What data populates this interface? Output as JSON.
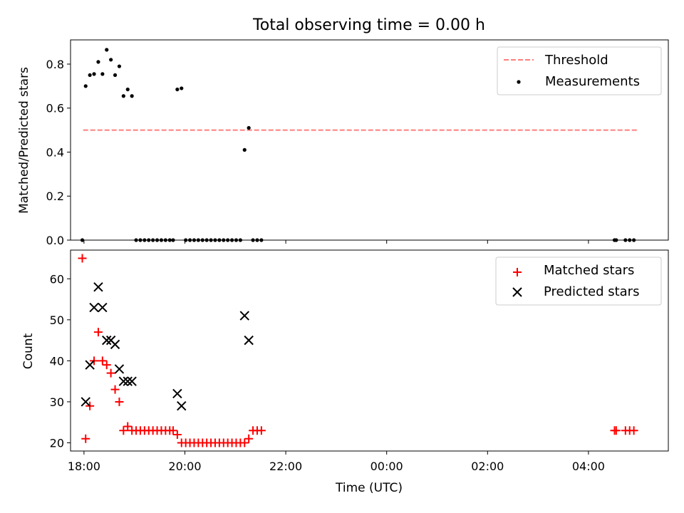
{
  "chart_data": [
    {
      "type": "scatter",
      "title": "Total observing time = 0.00 h",
      "xlabel": "",
      "ylabel": "Matched/Predicted stars",
      "xlim": [
        "17:44",
        "05:35"
      ],
      "ylim": [
        0,
        0.91
      ],
      "yticks": [
        "0.0",
        "0.2",
        "0.4",
        "0.6",
        "0.8"
      ],
      "grid": false,
      "legend_position": "top-right",
      "series": [
        {
          "name": "Threshold",
          "style": "dashed-line",
          "color": "#ff7f7f",
          "x": [
            "17:59",
            "04:58"
          ],
          "y": [
            0.5,
            0.5
          ]
        },
        {
          "name": "Measurements",
          "style": "dot",
          "color": "#000000",
          "x": [
            "17:58",
            "18:02",
            "18:07",
            "18:12",
            "18:17",
            "18:22",
            "18:27",
            "18:32",
            "18:37",
            "18:42",
            "18:47",
            "18:52",
            "18:57",
            "19:02",
            "19:07",
            "19:12",
            "19:17",
            "19:22",
            "19:27",
            "19:32",
            "19:37",
            "19:42",
            "19:46",
            "19:51",
            "19:56",
            "20:01",
            "20:06",
            "20:11",
            "20:16",
            "20:21",
            "20:26",
            "20:31",
            "20:36",
            "20:41",
            "20:46",
            "20:51",
            "20:56",
            "21:01",
            "21:06",
            "21:11",
            "21:16",
            "21:21",
            "21:26",
            "21:31",
            "04:31",
            "04:33",
            "04:44",
            "04:49",
            "04:54"
          ],
          "y": [
            0.0,
            0.7,
            0.75,
            0.755,
            0.81,
            0.755,
            0.865,
            0.82,
            0.75,
            0.79,
            0.655,
            0.685,
            0.655,
            0.0,
            0.0,
            0.0,
            0.0,
            0.0,
            0.0,
            0.0,
            0.0,
            0.0,
            0.0,
            0.685,
            0.69,
            0.0,
            0.0,
            0.0,
            0.0,
            0.0,
            0.0,
            0.0,
            0.0,
            0.0,
            0.0,
            0.0,
            0.0,
            0.0,
            0.0,
            0.41,
            0.51,
            0.0,
            0.0,
            0.0,
            0.0,
            0.0,
            0.0,
            0.0,
            0.0
          ]
        }
      ]
    },
    {
      "type": "scatter",
      "title": "",
      "xlabel": "Time (UTC)",
      "ylabel": "Count",
      "xlim": [
        "17:44",
        "05:35"
      ],
      "ylim": [
        18,
        67
      ],
      "yticks": [
        "20",
        "30",
        "40",
        "50",
        "60"
      ],
      "xticks": [
        "18:00",
        "20:00",
        "22:00",
        "00:00",
        "02:00",
        "04:00"
      ],
      "grid": false,
      "legend_position": "top-right",
      "series": [
        {
          "name": "Matched stars",
          "style": "plus",
          "color": "#ff0000",
          "x": [
            "17:58",
            "18:02",
            "18:07",
            "18:12",
            "18:17",
            "18:22",
            "18:27",
            "18:32",
            "18:37",
            "18:42",
            "18:47",
            "18:52",
            "18:57",
            "19:02",
            "19:07",
            "19:12",
            "19:17",
            "19:22",
            "19:27",
            "19:32",
            "19:37",
            "19:42",
            "19:46",
            "19:51",
            "19:56",
            "20:01",
            "20:06",
            "20:11",
            "20:16",
            "20:21",
            "20:26",
            "20:31",
            "20:36",
            "20:41",
            "20:46",
            "20:51",
            "20:56",
            "21:01",
            "21:06",
            "21:11",
            "21:16",
            "21:21",
            "21:26",
            "21:31",
            "04:31",
            "04:33",
            "04:44",
            "04:49",
            "04:54"
          ],
          "y": [
            65,
            21,
            29,
            40,
            47,
            40,
            39,
            37,
            33,
            30,
            23,
            24,
            23,
            23,
            23,
            23,
            23,
            23,
            23,
            23,
            23,
            23,
            23,
            22,
            20,
            20,
            20,
            20,
            20,
            20,
            20,
            20,
            20,
            20,
            20,
            20,
            20,
            20,
            20,
            20,
            21,
            23,
            23,
            23,
            23,
            23,
            23,
            23,
            23
          ]
        },
        {
          "name": "Predicted stars",
          "style": "x",
          "color": "#000000",
          "x": [
            "18:02",
            "18:07",
            "18:12",
            "18:17",
            "18:22",
            "18:27",
            "18:32",
            "18:37",
            "18:42",
            "18:47",
            "18:52",
            "18:57",
            "19:51",
            "19:56",
            "21:11",
            "21:16"
          ],
          "y": [
            30,
            39,
            53,
            58,
            53,
            45,
            45,
            44,
            38,
            35,
            35,
            35,
            32,
            29,
            51,
            45
          ]
        }
      ]
    }
  ]
}
